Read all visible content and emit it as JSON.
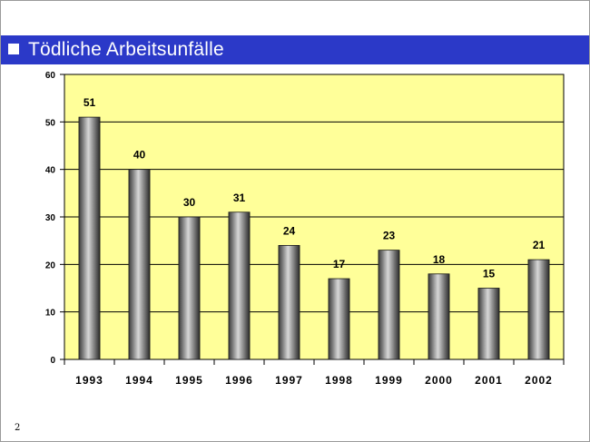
{
  "slide": {
    "title": "Tödliche Arbeitsunfälle",
    "page_number": "2"
  },
  "colors": {
    "title_bar": "#2b39c8",
    "title_text": "#ffffff",
    "plot_background": "#ffff99",
    "bar_dark": "#3a3a3a",
    "bar_light": "#d8d8d8",
    "gridline": "#000000"
  },
  "chart_data": {
    "type": "bar",
    "title": "",
    "xlabel": "",
    "ylabel": "",
    "categories": [
      "1993",
      "1994",
      "1995",
      "1996",
      "1997",
      "1998",
      "1999",
      "2000",
      "2001",
      "2002"
    ],
    "values": [
      51,
      40,
      30,
      31,
      24,
      17,
      23,
      18,
      15,
      21
    ],
    "data_labels": [
      "51",
      "40",
      "30",
      "31",
      "24",
      "17",
      "23",
      "18",
      "15",
      "21"
    ],
    "ylim": [
      0,
      60
    ],
    "yticks": [
      0,
      10,
      20,
      30,
      40,
      50,
      60
    ],
    "ytick_labels": [
      "0",
      "10",
      "20",
      "30",
      "40",
      "50",
      "60"
    ],
    "grid": true,
    "legend": "none"
  }
}
